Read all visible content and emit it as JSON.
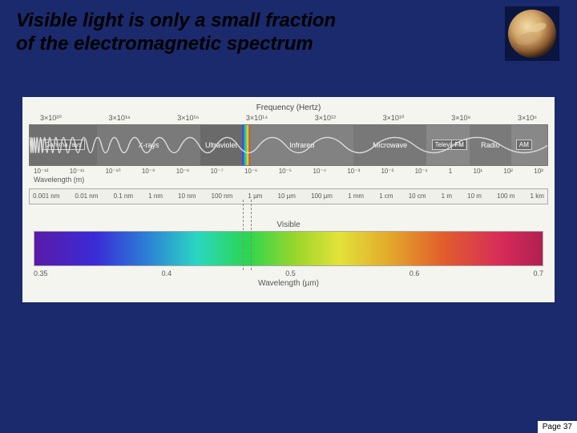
{
  "slide": {
    "title_line1": "Visible light is only a small fraction",
    "title_line2": "of the electromagnetic spectrum",
    "background_color": "#1a2a6c",
    "title_color": "#000000",
    "title_fontsize": 24,
    "underline_color": "#1a2a6c"
  },
  "planet_icon": {
    "name": "venus-image",
    "gradient": [
      "#e8c88a",
      "#b88850",
      "#6b4020"
    ]
  },
  "em_spectrum": {
    "type": "diagram",
    "frequency_axis": {
      "label": "Frequency (Hertz)",
      "ticks": [
        "3×10²⁰",
        "3×10¹⁸",
        "3×10¹⁶",
        "3×10¹⁴",
        "3×10¹²",
        "3×10¹⁰",
        "3×10⁸",
        "3×10⁶"
      ]
    },
    "bands": [
      {
        "label": "Gamma rays",
        "left_pct": 0,
        "width_pct": 13,
        "bg": "#707070"
      },
      {
        "label": "X-rays",
        "left_pct": 13,
        "width_pct": 20,
        "bg": "#7a7a7a"
      },
      {
        "label": "Ultraviolet",
        "left_pct": 33,
        "width_pct": 8,
        "bg": "#6a6a6a"
      },
      {
        "label": "",
        "left_pct": 41,
        "width_pct": 1.6,
        "bg": "visible"
      },
      {
        "label": "Infrared",
        "left_pct": 42.6,
        "width_pct": 20,
        "bg": "#828282"
      },
      {
        "label": "Microwave",
        "left_pct": 62.6,
        "width_pct": 14,
        "bg": "#787878"
      },
      {
        "label": "Television",
        "left_pct": 78,
        "width_pct": 6,
        "bg": "box"
      },
      {
        "label": "FM",
        "left_pct": 80,
        "width_pct": 3,
        "bg": "box"
      },
      {
        "label": "Radio",
        "left_pct": 84,
        "width_pct": 8,
        "bg": "#7a7a7a"
      },
      {
        "label": "AM",
        "left_pct": 93,
        "width_pct": 3,
        "bg": "box"
      }
    ],
    "wave_overlay": {
      "color": "#dddddd",
      "stroke_width": 1.4
    },
    "wavelength_exp": {
      "ticks": [
        "10⁻¹²",
        "10⁻¹¹",
        "10⁻¹⁰",
        "10⁻⁹",
        "10⁻⁸",
        "10⁻⁷",
        "10⁻⁶",
        "10⁻⁵",
        "10⁻⁴",
        "10⁻³",
        "10⁻²",
        "10⁻¹",
        "1",
        "10¹",
        "10²",
        "10³"
      ],
      "label": "Wavelength (m)"
    },
    "wavelength_units": {
      "ticks": [
        "0.001 nm",
        "0.01 nm",
        "0.1 nm",
        "1 nm",
        "10 nm",
        "100 nm",
        "1 µm",
        "10 µm",
        "100 µm",
        "1 mm",
        "1 cm",
        "10 cm",
        "1 m",
        "10 m",
        "100 m",
        "1 km"
      ]
    },
    "visible_detail": {
      "label": "Visible",
      "axis_label": "Wavelength (µm)",
      "ticks": [
        "0.35",
        "0.4",
        "0.5",
        "0.6",
        "0.7"
      ],
      "gradient_stops": [
        "#5a1ba8",
        "#3a2bd6",
        "#2b7fd6",
        "#2bd6c2",
        "#2bd64d",
        "#a0d62b",
        "#e2e23a",
        "#e2a82b",
        "#e2602b",
        "#d62b5a",
        "#b02050"
      ]
    },
    "projection_lines": {
      "left_src_pct": 41,
      "right_src_pct": 42.6
    }
  },
  "footer": {
    "text": "Page 37"
  }
}
